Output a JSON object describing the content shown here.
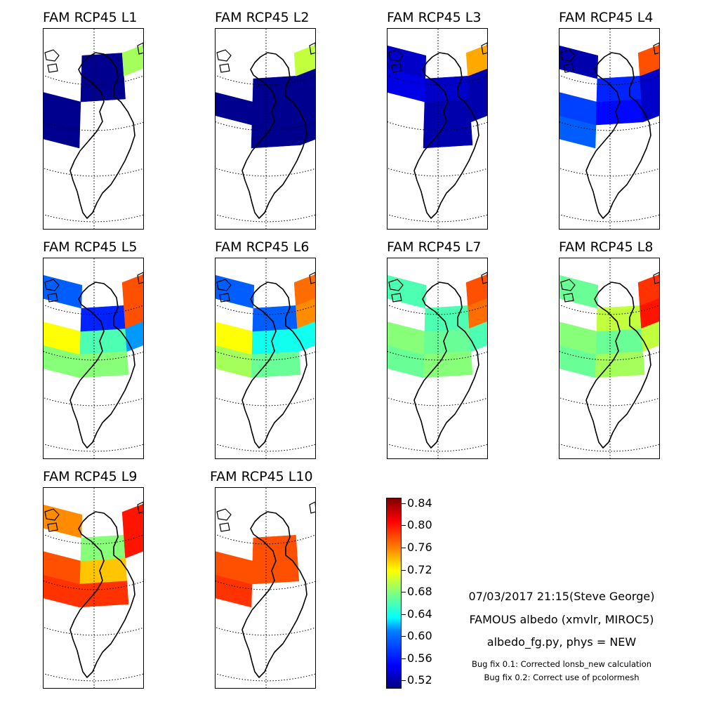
{
  "panels": [
    {
      "title": "FAM RCP45 L1",
      "cells": [
        [
          0,
          5,
          0.51
        ],
        [
          1,
          2,
          0.51
        ],
        [
          1,
          4,
          0.51
        ],
        [
          0,
          1,
          0.51
        ],
        [
          0,
          0,
          0.53
        ],
        [
          1,
          0,
          0.53
        ],
        [
          2,
          2,
          0.51
        ],
        [
          3,
          2,
          0.51
        ],
        [
          3,
          5,
          0.51
        ],
        [
          4,
          3,
          0.51
        ],
        [
          4,
          4,
          0.51
        ],
        [
          5,
          5,
          0.51
        ],
        [
          5,
          6,
          0.51
        ],
        [
          6,
          6,
          0.69
        ],
        [
          2,
          5,
          0.51
        ],
        [
          2,
          6,
          0.51
        ],
        [
          3,
          6,
          0.51
        ]
      ]
    },
    {
      "title": "FAM RCP45 L2",
      "cells": [
        [
          0,
          1,
          0.55
        ],
        [
          0,
          0,
          0.58
        ],
        [
          1,
          0,
          0.6
        ],
        [
          1,
          1,
          0.55
        ],
        [
          0,
          2,
          0.52
        ],
        [
          1,
          2,
          0.52
        ],
        [
          2,
          2,
          0.51
        ],
        [
          3,
          2,
          0.51
        ],
        [
          0,
          6,
          0.51
        ],
        [
          1,
          6,
          0.51
        ],
        [
          2,
          6,
          0.51
        ],
        [
          3,
          6,
          0.51
        ],
        [
          5,
          3,
          0.51
        ],
        [
          5,
          4,
          0.51
        ],
        [
          6,
          3,
          0.51
        ],
        [
          6,
          4,
          0.51
        ],
        [
          6,
          5,
          0.51
        ],
        [
          5,
          5,
          0.51
        ],
        [
          6,
          6,
          0.7
        ],
        [
          4,
          4,
          0.51
        ]
      ]
    },
    {
      "title": "FAM RCP45 L3",
      "cells": [
        [
          0,
          0,
          0.66
        ],
        [
          0,
          1,
          0.57
        ],
        [
          1,
          0,
          0.62
        ],
        [
          1,
          1,
          0.56
        ],
        [
          2,
          1,
          0.55
        ],
        [
          2,
          2,
          0.53
        ],
        [
          2,
          6,
          0.54
        ],
        [
          3,
          6,
          0.54
        ],
        [
          4,
          6,
          0.53
        ],
        [
          5,
          4,
          0.52
        ],
        [
          5,
          5,
          0.53
        ],
        [
          6,
          4,
          0.52
        ],
        [
          6,
          5,
          0.52
        ],
        [
          5,
          3,
          0.52
        ],
        [
          6,
          6,
          0.75
        ],
        [
          0,
          6,
          0.52
        ],
        [
          1,
          6,
          0.52
        ],
        [
          4,
          5,
          0.54
        ]
      ]
    },
    {
      "title": "FAM RCP45 L4",
      "cells": [
        [
          0,
          0,
          0.6
        ],
        [
          0,
          1,
          0.57
        ],
        [
          1,
          0,
          0.66
        ],
        [
          1,
          1,
          0.62
        ],
        [
          2,
          1,
          0.54
        ],
        [
          2,
          2,
          0.6
        ],
        [
          3,
          2,
          0.58
        ],
        [
          3,
          3,
          0.7
        ],
        [
          3,
          4,
          0.7
        ],
        [
          4,
          3,
          0.58
        ],
        [
          4,
          4,
          0.57
        ],
        [
          5,
          4,
          0.55
        ],
        [
          5,
          5,
          0.56
        ],
        [
          6,
          5,
          0.53
        ],
        [
          6,
          4,
          0.53
        ],
        [
          6,
          6,
          0.78
        ],
        [
          0,
          6,
          0.52
        ],
        [
          1,
          6,
          0.52
        ],
        [
          2,
          6,
          0.64
        ],
        [
          3,
          6,
          0.64
        ],
        [
          4,
          6,
          0.52
        ]
      ]
    },
    {
      "title": "FAM RCP45 L5",
      "cells": [
        [
          0,
          0,
          0.7
        ],
        [
          0,
          1,
          0.72
        ],
        [
          1,
          0,
          0.72
        ],
        [
          1,
          1,
          0.74
        ],
        [
          2,
          1,
          0.56
        ],
        [
          2,
          2,
          0.61
        ],
        [
          3,
          2,
          0.55
        ],
        [
          3,
          3,
          0.56
        ],
        [
          3,
          4,
          0.68
        ],
        [
          4,
          3,
          0.68
        ],
        [
          4,
          4,
          0.72
        ],
        [
          5,
          4,
          0.66
        ],
        [
          5,
          5,
          0.56
        ],
        [
          6,
          5,
          0.78
        ],
        [
          6,
          4,
          0.6
        ],
        [
          6,
          6,
          0.78
        ],
        [
          0,
          6,
          0.52
        ],
        [
          1,
          6,
          0.52
        ],
        [
          2,
          6,
          0.53
        ],
        [
          3,
          6,
          0.53
        ],
        [
          4,
          6,
          0.58
        ],
        [
          5,
          3,
          0.68
        ]
      ]
    },
    {
      "title": "FAM RCP45 L6",
      "cells": [
        [
          0,
          0,
          0.73
        ],
        [
          0,
          1,
          0.76
        ],
        [
          1,
          0,
          0.73
        ],
        [
          1,
          1,
          0.76
        ],
        [
          2,
          1,
          0.72
        ],
        [
          2,
          2,
          0.69
        ],
        [
          3,
          2,
          0.65
        ],
        [
          3,
          3,
          0.69
        ],
        [
          3,
          4,
          0.7
        ],
        [
          4,
          3,
          0.69
        ],
        [
          4,
          4,
          0.72
        ],
        [
          5,
          4,
          0.64
        ],
        [
          5,
          5,
          0.58
        ],
        [
          6,
          5,
          0.76
        ],
        [
          6,
          4,
          0.64
        ],
        [
          6,
          6,
          0.77
        ],
        [
          0,
          6,
          0.52
        ],
        [
          1,
          6,
          0.52
        ],
        [
          2,
          6,
          0.58
        ],
        [
          3,
          6,
          0.58
        ],
        [
          4,
          6,
          0.58
        ],
        [
          5,
          3,
          0.67
        ]
      ]
    },
    {
      "title": "FAM RCP45 L7",
      "cells": [
        [
          0,
          0,
          0.74
        ],
        [
          0,
          1,
          0.77
        ],
        [
          1,
          0,
          0.74
        ],
        [
          1,
          1,
          0.77
        ],
        [
          2,
          1,
          0.76
        ],
        [
          2,
          2,
          0.72
        ],
        [
          3,
          2,
          0.67
        ],
        [
          3,
          3,
          0.7
        ],
        [
          3,
          4,
          0.72
        ],
        [
          4,
          3,
          0.67
        ],
        [
          4,
          4,
          0.68
        ],
        [
          5,
          4,
          0.67
        ],
        [
          5,
          5,
          0.66
        ],
        [
          6,
          5,
          0.77
        ],
        [
          6,
          4,
          0.66
        ],
        [
          6,
          6,
          0.78
        ],
        [
          0,
          6,
          0.52
        ],
        [
          1,
          6,
          0.55
        ],
        [
          2,
          6,
          0.72
        ],
        [
          3,
          6,
          0.67
        ],
        [
          4,
          6,
          0.66
        ],
        [
          5,
          3,
          0.68
        ]
      ]
    },
    {
      "title": "FAM RCP45 L8",
      "cells": [
        [
          0,
          0,
          0.77
        ],
        [
          0,
          1,
          0.79
        ],
        [
          1,
          0,
          0.78
        ],
        [
          1,
          1,
          0.8
        ],
        [
          2,
          1,
          0.79
        ],
        [
          2,
          2,
          0.78
        ],
        [
          3,
          2,
          0.78
        ],
        [
          3,
          3,
          0.74
        ],
        [
          3,
          4,
          0.72
        ],
        [
          4,
          3,
          0.67
        ],
        [
          4,
          4,
          0.68
        ],
        [
          5,
          4,
          0.67
        ],
        [
          5,
          5,
          0.7
        ],
        [
          6,
          5,
          0.8
        ],
        [
          6,
          4,
          0.7
        ],
        [
          6,
          6,
          0.79
        ],
        [
          2,
          6,
          0.71
        ],
        [
          3,
          6,
          0.74
        ],
        [
          4,
          6,
          0.67
        ],
        [
          5,
          3,
          0.69
        ]
      ]
    },
    {
      "title": "FAM RCP45 L9",
      "cells": [
        [
          1,
          1,
          0.8
        ],
        [
          2,
          1,
          0.81
        ],
        [
          2,
          2,
          0.79
        ],
        [
          3,
          2,
          0.79
        ],
        [
          3,
          3,
          0.78
        ],
        [
          3,
          4,
          0.76
        ],
        [
          4,
          3,
          0.79
        ],
        [
          4,
          4,
          0.78
        ],
        [
          5,
          4,
          0.74
        ],
        [
          5,
          5,
          0.68
        ],
        [
          6,
          5,
          0.8
        ],
        [
          6,
          6,
          0.8
        ],
        [
          2,
          6,
          0.74
        ],
        [
          3,
          6,
          0.79
        ],
        [
          4,
          6,
          0.76
        ],
        [
          5,
          3,
          0.79
        ]
      ]
    },
    {
      "title": "FAM RCP45 L10",
      "cells": [
        [
          2,
          2,
          0.79
        ],
        [
          3,
          2,
          0.79
        ],
        [
          3,
          3,
          0.79
        ],
        [
          3,
          4,
          0.78
        ],
        [
          4,
          3,
          0.79
        ],
        [
          4,
          4,
          0.78
        ],
        [
          5,
          4,
          0.78
        ],
        [
          5,
          5,
          0.78
        ]
      ]
    }
  ],
  "chart_data": {
    "type": "heatmap",
    "variable": "albedo",
    "colormap": "jet",
    "note": "cells are [col,row,value] on a coarse 7x7 lon/lat grid over Greenland (row 0 = south)",
    "colorbar": {
      "ticks": [
        "0.84",
        "0.80",
        "0.76",
        "0.72",
        "0.68",
        "0.64",
        "0.60",
        "0.56",
        "0.52"
      ],
      "range": [
        0.505,
        0.85
      ]
    }
  },
  "info": {
    "timestamp_line": "07/03/2017 21:15(Steve George)",
    "model_line": "FAMOUS albedo (xmvlr, MIROC5)",
    "script_line": "albedo_fg.py, phys = NEW",
    "bugfix_1": "Bug fix 0.1: Corrected lonsb_new calculation",
    "bugfix_2": "Bug fix 0.2: Correct use of pcolormesh"
  }
}
